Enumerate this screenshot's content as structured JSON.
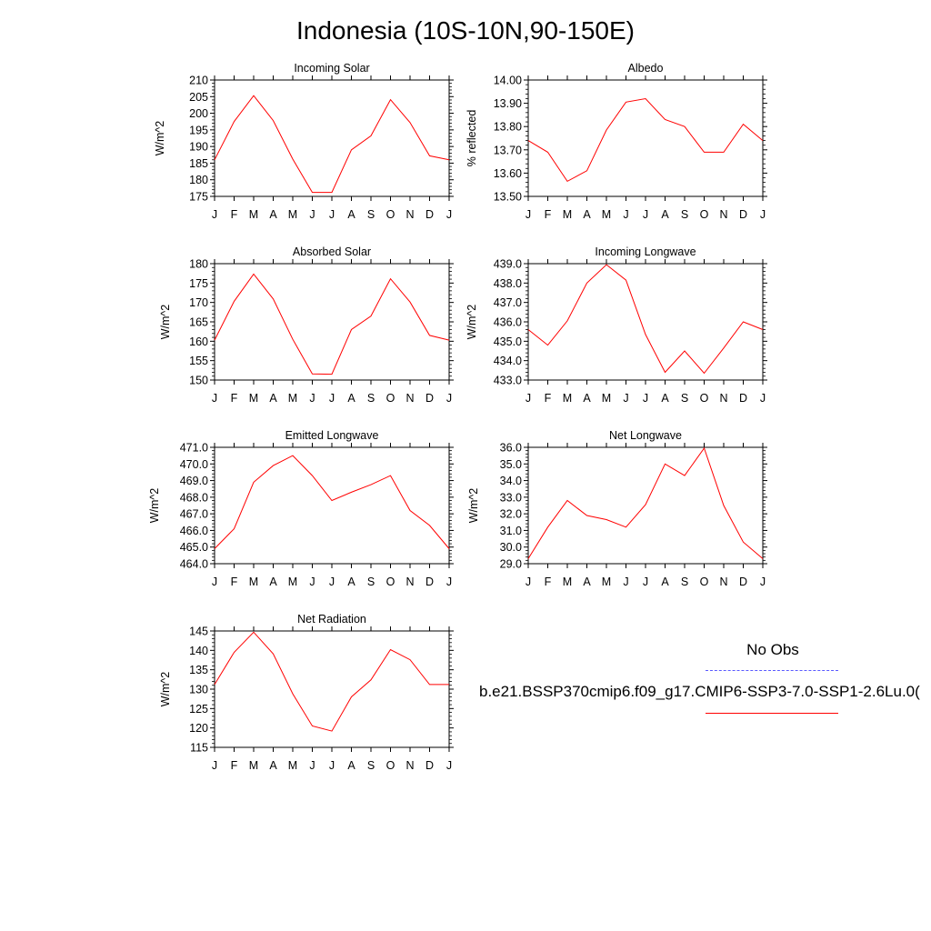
{
  "title": "Indonesia (10S-10N,90-150E)",
  "colors": {
    "model": "#ff0000",
    "obs": "#5a5aff",
    "axis": "#000000"
  },
  "legend": {
    "obs_label": "No Obs",
    "model_label": "b.e21.BSSP370cmip6.f09_g17.CMIP6-SSP3-7.0-SSP1-2.6Lu.0("
  },
  "chart_data": [
    {
      "type": "line",
      "title": "Incoming Solar",
      "ylabel": "W/m^2",
      "categories": [
        "J",
        "F",
        "M",
        "A",
        "M",
        "J",
        "J",
        "A",
        "S",
        "O",
        "N",
        "D",
        "J"
      ],
      "ylim": [
        175,
        210
      ],
      "yticks": [
        "175",
        "180",
        "185",
        "190",
        "195",
        "200",
        "205",
        "210"
      ],
      "series": [
        {
          "values": [
            186,
            197.5,
            205.3,
            197.8,
            186.2,
            176.2,
            176.2,
            189,
            193.2,
            204.1,
            197.2,
            187.2,
            186
          ]
        }
      ]
    },
    {
      "type": "line",
      "title": "Albedo",
      "ylabel": "% reflected",
      "categories": [
        "J",
        "F",
        "M",
        "A",
        "M",
        "J",
        "J",
        "A",
        "S",
        "O",
        "N",
        "D",
        "J"
      ],
      "ylim": [
        13.5,
        14.0
      ],
      "yticks": [
        "13.50",
        "13.60",
        "13.70",
        "13.80",
        "13.90",
        "14.00"
      ],
      "series": [
        {
          "values": [
            13.74,
            13.69,
            13.565,
            13.61,
            13.785,
            13.905,
            13.92,
            13.83,
            13.8,
            13.69,
            13.69,
            13.81,
            13.74
          ]
        }
      ]
    },
    {
      "type": "line",
      "title": "Absorbed Solar",
      "ylabel": "W/m^2",
      "categories": [
        "J",
        "F",
        "M",
        "A",
        "M",
        "J",
        "J",
        "A",
        "S",
        "O",
        "N",
        "D",
        "J"
      ],
      "ylim": [
        150,
        180
      ],
      "yticks": [
        "150",
        "155",
        "160",
        "165",
        "170",
        "175",
        "180"
      ],
      "series": [
        {
          "values": [
            160.3,
            170.3,
            177.3,
            170.9,
            160.5,
            151.6,
            151.5,
            163,
            166.5,
            176.1,
            170.1,
            161.5,
            160.3
          ]
        }
      ]
    },
    {
      "type": "line",
      "title": "Incoming Longwave",
      "ylabel": "W/m^2",
      "categories": [
        "J",
        "F",
        "M",
        "A",
        "M",
        "J",
        "J",
        "A",
        "S",
        "O",
        "N",
        "D",
        "J"
      ],
      "ylim": [
        433.0,
        439.0
      ],
      "yticks": [
        "433.0",
        "434.0",
        "435.0",
        "436.0",
        "437.0",
        "438.0",
        "439.0"
      ],
      "series": [
        {
          "values": [
            435.6,
            434.8,
            436.05,
            438.0,
            438.95,
            438.15,
            435.35,
            433.4,
            434.5,
            433.35,
            434.65,
            436.0,
            435.6
          ]
        }
      ]
    },
    {
      "type": "line",
      "title": "Emitted Longwave",
      "ylabel": "W/m^2",
      "categories": [
        "J",
        "F",
        "M",
        "A",
        "M",
        "J",
        "J",
        "A",
        "S",
        "O",
        "N",
        "D",
        "J"
      ],
      "ylim": [
        464.0,
        471.0
      ],
      "yticks": [
        "464.0",
        "465.0",
        "466.0",
        "467.0",
        "468.0",
        "469.0",
        "470.0",
        "471.0"
      ],
      "series": [
        {
          "values": [
            464.9,
            466.1,
            468.9,
            469.9,
            470.5,
            469.3,
            467.8,
            468.3,
            468.75,
            469.3,
            467.2,
            466.3,
            464.9
          ]
        }
      ]
    },
    {
      "type": "line",
      "title": "Net Longwave",
      "ylabel": "W/m^2",
      "categories": [
        "J",
        "F",
        "M",
        "A",
        "M",
        "J",
        "J",
        "A",
        "S",
        "O",
        "N",
        "D",
        "J"
      ],
      "ylim": [
        29.0,
        36.0
      ],
      "yticks": [
        "29.0",
        "30.0",
        "31.0",
        "32.0",
        "33.0",
        "34.0",
        "35.0",
        "36.0"
      ],
      "series": [
        {
          "values": [
            29.3,
            31.2,
            32.8,
            31.9,
            31.65,
            31.2,
            32.55,
            35.0,
            34.3,
            35.95,
            32.5,
            30.3,
            29.3
          ]
        }
      ]
    },
    {
      "type": "line",
      "title": "Net Radiation",
      "ylabel": "W/m^2",
      "categories": [
        "J",
        "F",
        "M",
        "A",
        "M",
        "J",
        "J",
        "A",
        "S",
        "O",
        "N",
        "D",
        "J"
      ],
      "ylim": [
        115,
        145
      ],
      "yticks": [
        "115",
        "120",
        "125",
        "130",
        "135",
        "140",
        "145"
      ],
      "series": [
        {
          "values": [
            131.2,
            139.5,
            144.7,
            139.1,
            128.8,
            120.5,
            119.2,
            128,
            132.4,
            140.2,
            137.6,
            131.2,
            131.2
          ]
        }
      ]
    }
  ]
}
